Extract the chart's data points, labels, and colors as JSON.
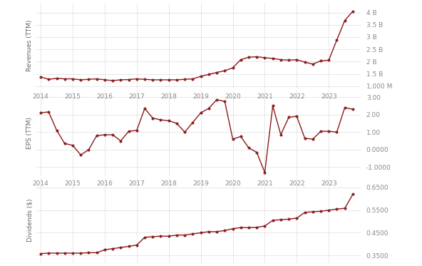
{
  "line_color": "#8B1A1A",
  "marker_size": 2.5,
  "marker": "o",
  "linewidth": 1.0,
  "bg_color": "#ffffff",
  "grid_color": "#dddddd",
  "label_color": "#666666",
  "tick_color": "#888888",
  "rev_ylabel": "Revenues (TTM)",
  "rev_yticks": [
    1000000000,
    1500000000,
    2000000000,
    2500000000,
    3000000000,
    3500000000,
    4000000000
  ],
  "rev_ytick_labels": [
    "1,000 M",
    "1.5 B",
    "2 B",
    "2.5 B",
    "3 B",
    "3.5 B",
    "4 B"
  ],
  "rev_ylim": [
    900000000,
    4400000000
  ],
  "rev_x": [
    2014.0,
    2014.25,
    2014.5,
    2014.75,
    2015.0,
    2015.25,
    2015.5,
    2015.75,
    2016.0,
    2016.25,
    2016.5,
    2016.75,
    2017.0,
    2017.25,
    2017.5,
    2017.75,
    2018.0,
    2018.25,
    2018.5,
    2018.75,
    2019.0,
    2019.25,
    2019.5,
    2019.75,
    2020.0,
    2020.25,
    2020.5,
    2020.75,
    2021.0,
    2021.25,
    2021.5,
    2021.75,
    2022.0,
    2022.25,
    2022.5,
    2022.75,
    2023.0,
    2023.25,
    2023.5,
    2023.75
  ],
  "rev_y": [
    1380000000.0,
    1280000000.0,
    1320000000.0,
    1300000000.0,
    1300000000.0,
    1260000000.0,
    1280000000.0,
    1300000000.0,
    1260000000.0,
    1230000000.0,
    1260000000.0,
    1270000000.0,
    1300000000.0,
    1280000000.0,
    1260000000.0,
    1260000000.0,
    1260000000.0,
    1260000000.0,
    1280000000.0,
    1300000000.0,
    1400000000.0,
    1480000000.0,
    1560000000.0,
    1630000000.0,
    1750000000.0,
    2080000000.0,
    2180000000.0,
    2200000000.0,
    2160000000.0,
    2130000000.0,
    2080000000.0,
    2060000000.0,
    2080000000.0,
    1980000000.0,
    1900000000.0,
    2030000000.0,
    2060000000.0,
    2880000000.0,
    3680000000.0,
    4050000000.0
  ],
  "eps_ylabel": "EPS (TTM)",
  "eps_yticks": [
    -1.0,
    0.0,
    1.0,
    2.0,
    3.0
  ],
  "eps_ytick_labels": [
    "-1.0000",
    "0.0000",
    "1.00",
    "2.00",
    "3.00"
  ],
  "eps_ylim": [
    -1.5,
    3.4
  ],
  "eps_x": [
    2014.0,
    2014.25,
    2014.5,
    2014.75,
    2015.0,
    2015.25,
    2015.5,
    2015.75,
    2016.0,
    2016.25,
    2016.5,
    2016.75,
    2017.0,
    2017.25,
    2017.5,
    2017.75,
    2018.0,
    2018.25,
    2018.5,
    2018.75,
    2019.0,
    2019.25,
    2019.5,
    2019.75,
    2020.0,
    2020.25,
    2020.5,
    2020.75,
    2021.0,
    2021.25,
    2021.5,
    2021.75,
    2022.0,
    2022.25,
    2022.5,
    2022.75,
    2023.0,
    2023.25,
    2023.5,
    2023.75
  ],
  "eps_y": [
    2.1,
    2.15,
    1.1,
    0.35,
    0.25,
    -0.3,
    0.0,
    0.8,
    0.85,
    0.85,
    0.5,
    1.05,
    1.1,
    2.35,
    1.8,
    1.7,
    1.65,
    1.5,
    1.0,
    1.55,
    2.1,
    2.35,
    2.85,
    2.75,
    0.6,
    0.75,
    0.1,
    -0.15,
    -1.3,
    2.5,
    0.85,
    1.85,
    1.9,
    0.65,
    0.6,
    1.05,
    1.05,
    1.0,
    2.4,
    2.3
  ],
  "div_ylabel": "Dividends ($)",
  "div_yticks": [
    0.35,
    0.45,
    0.55,
    0.65
  ],
  "div_ytick_labels": [
    "0.3500",
    "0.4500",
    "0.5500",
    "0.6500"
  ],
  "div_ylim": [
    0.315,
    0.695
  ],
  "div_x": [
    2014.0,
    2014.25,
    2014.5,
    2014.75,
    2015.0,
    2015.25,
    2015.5,
    2015.75,
    2016.0,
    2016.25,
    2016.5,
    2016.75,
    2017.0,
    2017.25,
    2017.5,
    2017.75,
    2018.0,
    2018.25,
    2018.5,
    2018.75,
    2019.0,
    2019.25,
    2019.5,
    2019.75,
    2020.0,
    2020.25,
    2020.5,
    2020.75,
    2021.0,
    2021.25,
    2021.5,
    2021.75,
    2022.0,
    2022.25,
    2022.5,
    2022.75,
    2023.0,
    2023.25,
    2023.5,
    2023.75
  ],
  "div_y": [
    0.358,
    0.36,
    0.36,
    0.36,
    0.36,
    0.36,
    0.362,
    0.362,
    0.375,
    0.38,
    0.385,
    0.39,
    0.396,
    0.43,
    0.433,
    0.435,
    0.435,
    0.44,
    0.44,
    0.445,
    0.45,
    0.455,
    0.455,
    0.46,
    0.468,
    0.473,
    0.473,
    0.474,
    0.48,
    0.505,
    0.508,
    0.51,
    0.515,
    0.54,
    0.543,
    0.545,
    0.55,
    0.555,
    0.558,
    0.62
  ],
  "xticks": [
    2014,
    2015,
    2016,
    2017,
    2018,
    2019,
    2020,
    2021,
    2022,
    2023
  ],
  "xlim": [
    2013.85,
    2024.0
  ],
  "fontsize_ylabel": 6.5,
  "fontsize_tick": 6.5
}
